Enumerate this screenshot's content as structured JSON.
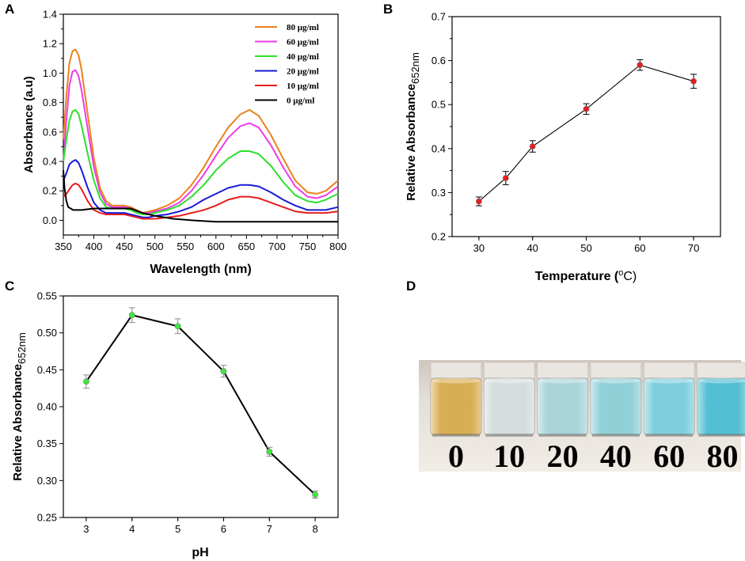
{
  "chart_data": [
    {
      "panel": "A",
      "type": "line",
      "xlabel": "Wavelength (nm)",
      "ylabel": "Absorbance (a.u)",
      "xlim": [
        350,
        800
      ],
      "ylim": [
        -0.1,
        1.4
      ],
      "xticks": [
        "350",
        "400",
        "450",
        "500",
        "550",
        "600",
        "650",
        "700",
        "750",
        "800"
      ],
      "yticks": [
        "0.0",
        "0.2",
        "0.4",
        "0.6",
        "0.8",
        "1.0",
        "1.2",
        "1.4"
      ],
      "legend_position": "top-right",
      "series": [
        {
          "name": "80 μg/ml",
          "color": "#e8821e",
          "x": [
            350,
            355,
            360,
            365,
            370,
            375,
            380,
            390,
            400,
            410,
            420,
            430,
            440,
            450,
            460,
            470,
            480,
            490,
            500,
            520,
            540,
            560,
            580,
            600,
            620,
            640,
            655,
            670,
            690,
            710,
            730,
            750,
            765,
            780,
            800
          ],
          "y": [
            0.55,
            0.85,
            1.07,
            1.15,
            1.16,
            1.12,
            1.02,
            0.72,
            0.42,
            0.22,
            0.13,
            0.1,
            0.1,
            0.1,
            0.09,
            0.07,
            0.05,
            0.06,
            0.07,
            0.1,
            0.15,
            0.24,
            0.36,
            0.5,
            0.63,
            0.72,
            0.75,
            0.71,
            0.58,
            0.42,
            0.27,
            0.19,
            0.18,
            0.2,
            0.27
          ]
        },
        {
          "name": "60 μg/ml",
          "color": "#ee3be8",
          "x": [
            350,
            355,
            360,
            365,
            370,
            375,
            380,
            390,
            400,
            410,
            420,
            430,
            440,
            450,
            460,
            470,
            480,
            490,
            500,
            520,
            540,
            560,
            580,
            600,
            620,
            640,
            655,
            670,
            690,
            710,
            730,
            750,
            765,
            780,
            800
          ],
          "y": [
            0.4,
            0.68,
            0.92,
            1.01,
            1.02,
            0.98,
            0.88,
            0.62,
            0.36,
            0.19,
            0.11,
            0.09,
            0.09,
            0.09,
            0.08,
            0.06,
            0.05,
            0.05,
            0.06,
            0.08,
            0.12,
            0.2,
            0.31,
            0.44,
            0.56,
            0.64,
            0.66,
            0.63,
            0.51,
            0.36,
            0.23,
            0.16,
            0.15,
            0.17,
            0.23
          ]
        },
        {
          "name": "40 μg/ml",
          "color": "#2be02b",
          "x": [
            350,
            355,
            360,
            365,
            370,
            375,
            380,
            390,
            400,
            410,
            420,
            430,
            440,
            450,
            460,
            470,
            480,
            490,
            500,
            520,
            540,
            560,
            580,
            600,
            620,
            640,
            655,
            670,
            690,
            710,
            730,
            750,
            765,
            780,
            800
          ],
          "y": [
            0.4,
            0.55,
            0.68,
            0.74,
            0.75,
            0.72,
            0.64,
            0.45,
            0.27,
            0.15,
            0.09,
            0.08,
            0.08,
            0.08,
            0.07,
            0.05,
            0.04,
            0.04,
            0.05,
            0.07,
            0.1,
            0.16,
            0.24,
            0.34,
            0.42,
            0.47,
            0.47,
            0.45,
            0.37,
            0.26,
            0.17,
            0.13,
            0.12,
            0.14,
            0.18
          ]
        },
        {
          "name": "20 μg/ml",
          "color": "#1a1ad8",
          "x": [
            350,
            355,
            360,
            365,
            370,
            375,
            380,
            390,
            400,
            410,
            420,
            430,
            440,
            450,
            460,
            470,
            480,
            490,
            500,
            520,
            540,
            560,
            580,
            600,
            620,
            640,
            655,
            670,
            690,
            710,
            730,
            750,
            765,
            780,
            800
          ],
          "y": [
            0.27,
            0.32,
            0.38,
            0.4,
            0.41,
            0.39,
            0.34,
            0.22,
            0.12,
            0.07,
            0.05,
            0.05,
            0.05,
            0.05,
            0.04,
            0.03,
            0.02,
            0.02,
            0.03,
            0.04,
            0.06,
            0.09,
            0.14,
            0.18,
            0.22,
            0.24,
            0.24,
            0.23,
            0.19,
            0.14,
            0.1,
            0.07,
            0.07,
            0.07,
            0.09
          ]
        },
        {
          "name": "10 μg/ml",
          "color": "#e81d1d",
          "x": [
            350,
            355,
            360,
            365,
            370,
            375,
            380,
            390,
            400,
            410,
            420,
            430,
            440,
            450,
            460,
            470,
            480,
            490,
            500,
            520,
            540,
            560,
            580,
            600,
            620,
            640,
            655,
            670,
            690,
            710,
            730,
            750,
            765,
            780,
            800
          ],
          "y": [
            0.16,
            0.18,
            0.21,
            0.24,
            0.25,
            0.24,
            0.21,
            0.13,
            0.07,
            0.05,
            0.04,
            0.04,
            0.04,
            0.04,
            0.03,
            0.02,
            0.01,
            0.01,
            0.01,
            0.02,
            0.03,
            0.05,
            0.07,
            0.1,
            0.14,
            0.16,
            0.16,
            0.15,
            0.12,
            0.09,
            0.06,
            0.05,
            0.05,
            0.05,
            0.06
          ]
        },
        {
          "name": "0 μg/ml",
          "color": "#000000",
          "x": [
            350,
            352,
            355,
            358,
            362,
            366,
            370,
            380,
            400,
            430,
            460,
            480,
            500,
            530,
            560,
            600,
            650,
            700,
            750,
            800
          ],
          "y": [
            0.34,
            0.22,
            0.13,
            0.09,
            0.08,
            0.07,
            0.07,
            0.07,
            0.08,
            0.08,
            0.08,
            0.05,
            0.03,
            0.01,
            0.0,
            -0.01,
            -0.01,
            -0.01,
            -0.01,
            -0.01
          ]
        }
      ]
    },
    {
      "panel": "B",
      "type": "line",
      "xlabel": "Temperature (",
      "xlabel_sup": "o",
      "xlabel_end": "C)",
      "ylabel": "Relative Absorbance",
      "ylabel_sub": "652nm",
      "xlim": [
        25,
        75
      ],
      "ylim": [
        0.2,
        0.7
      ],
      "xticks": [
        "30",
        "40",
        "50",
        "60",
        "70"
      ],
      "yticks": [
        "0.2",
        "0.3",
        "0.4",
        "0.5",
        "0.6",
        "0.7"
      ],
      "marker_color": "#e81d1d",
      "x": [
        30,
        35,
        40,
        50,
        60,
        70
      ],
      "y": [
        0.28,
        0.333,
        0.405,
        0.49,
        0.59,
        0.553
      ],
      "err": [
        0.01,
        0.015,
        0.013,
        0.012,
        0.012,
        0.016
      ]
    },
    {
      "panel": "C",
      "type": "line",
      "xlabel": "pH",
      "ylabel": "Relative Absorbance",
      "ylabel_sub": "652nm",
      "xlim": [
        2.5,
        8.5
      ],
      "ylim": [
        0.25,
        0.55
      ],
      "xticks": [
        "3",
        "4",
        "5",
        "6",
        "7",
        "8"
      ],
      "yticks": [
        "0.25",
        "0.30",
        "0.35",
        "0.40",
        "0.45",
        "0.50",
        "0.55"
      ],
      "marker_color": "#3ee83e",
      "x": [
        3,
        4,
        5,
        6,
        7,
        8
      ],
      "y": [
        0.434,
        0.524,
        0.509,
        0.448,
        0.339,
        0.281
      ],
      "err": [
        0.009,
        0.01,
        0.01,
        0.008,
        0.006,
        0.005
      ]
    }
  ],
  "panel_labels": {
    "a": "A",
    "b": "B",
    "c": "C",
    "d": "D"
  },
  "photo": {
    "labels": [
      "0",
      "10",
      "20",
      "40",
      "60",
      "80"
    ],
    "vial_colors": [
      "#d9ae52",
      "#d4dcdc",
      "#a9d4d9",
      "#92d0d8",
      "#7ecfdc",
      "#52bfd2"
    ]
  }
}
